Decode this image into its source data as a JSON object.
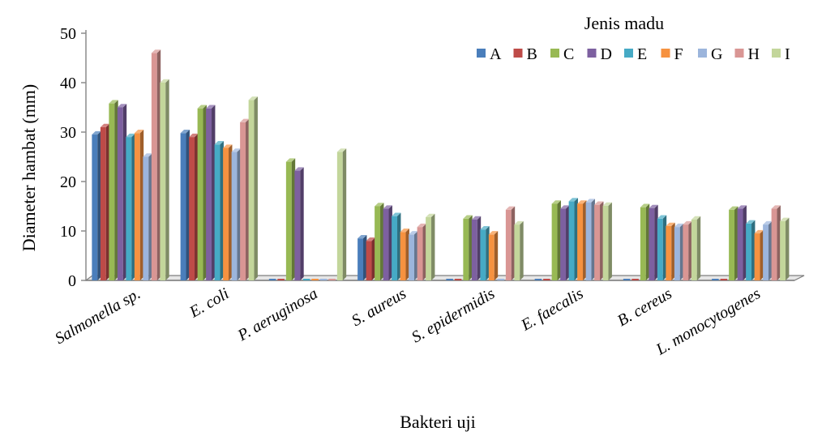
{
  "chart_data": {
    "type": "bar",
    "title": "",
    "xlabel": "Bakteri uji",
    "ylabel": "Diameter hambat (mm)",
    "ylim": [
      0,
      50
    ],
    "yticks": [
      0,
      10,
      20,
      30,
      40,
      50
    ],
    "grid": false,
    "legend": {
      "title": "Jenis madu",
      "placement": "top-right"
    },
    "categories": [
      "Salmonella sp.",
      "E. coli",
      "P. aeruginosa",
      "S. aureus",
      "S. epidermidis",
      "E. faecalis",
      "B. cereus",
      "L. monocytogenes"
    ],
    "series": [
      {
        "name": "A",
        "color": "#4a7ebb",
        "values": [
          29.5,
          29.8,
          0,
          8.5,
          0,
          0,
          0,
          0
        ]
      },
      {
        "name": "B",
        "color": "#be4b48",
        "values": [
          31,
          29,
          0,
          8,
          0,
          0,
          0,
          0
        ]
      },
      {
        "name": "C",
        "color": "#98b954",
        "values": [
          35.8,
          34.8,
          24,
          15,
          12.5,
          15.5,
          14.8,
          14.3
        ]
      },
      {
        "name": "D",
        "color": "#7d60a0",
        "values": [
          35,
          34.8,
          22.2,
          14.5,
          12.3,
          14.5,
          14.6,
          14.5
        ]
      },
      {
        "name": "E",
        "color": "#46aac5",
        "values": [
          29,
          27.5,
          0,
          13,
          10.3,
          16,
          12.5,
          11.5
        ]
      },
      {
        "name": "F",
        "color": "#f69240",
        "values": [
          29.8,
          26.8,
          0,
          9.8,
          9.3,
          15.5,
          11,
          9.5
        ]
      },
      {
        "name": "G",
        "color": "#9cb5dc",
        "values": [
          25,
          26,
          0,
          9.3,
          0,
          15.8,
          10.8,
          11.3
        ]
      },
      {
        "name": "H",
        "color": "#d99694",
        "values": [
          46,
          32,
          0,
          10.8,
          14.3,
          15.3,
          11.3,
          14.5
        ]
      },
      {
        "name": "I",
        "color": "#c3d69b",
        "values": [
          40,
          36.5,
          26,
          12.8,
          11.3,
          15.1,
          12.3,
          12
        ]
      }
    ]
  }
}
